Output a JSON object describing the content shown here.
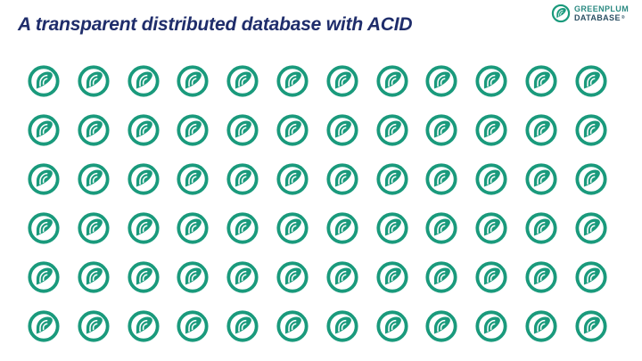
{
  "slide": {
    "title": "A transparent distributed database with ACID"
  },
  "logo": {
    "line1": "GREENPLUM",
    "line2": "DATABASE",
    "trademark": "®",
    "icon": "greenplum-logo-icon"
  },
  "grid": {
    "rows": 6,
    "columns": 12,
    "icon": "greenplum-node-icon"
  },
  "colors": {
    "title": "#1f2d6b",
    "icon": "#1a9a7c",
    "logo_text": "#2b8a82"
  }
}
